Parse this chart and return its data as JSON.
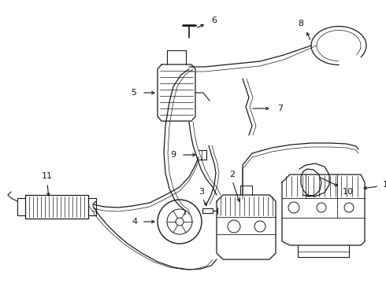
{
  "bg_color": "#ffffff",
  "line_color": "#1a1a1a",
  "lw": 1.0,
  "figsize": [
    4.9,
    3.6
  ],
  "dpi": 100
}
